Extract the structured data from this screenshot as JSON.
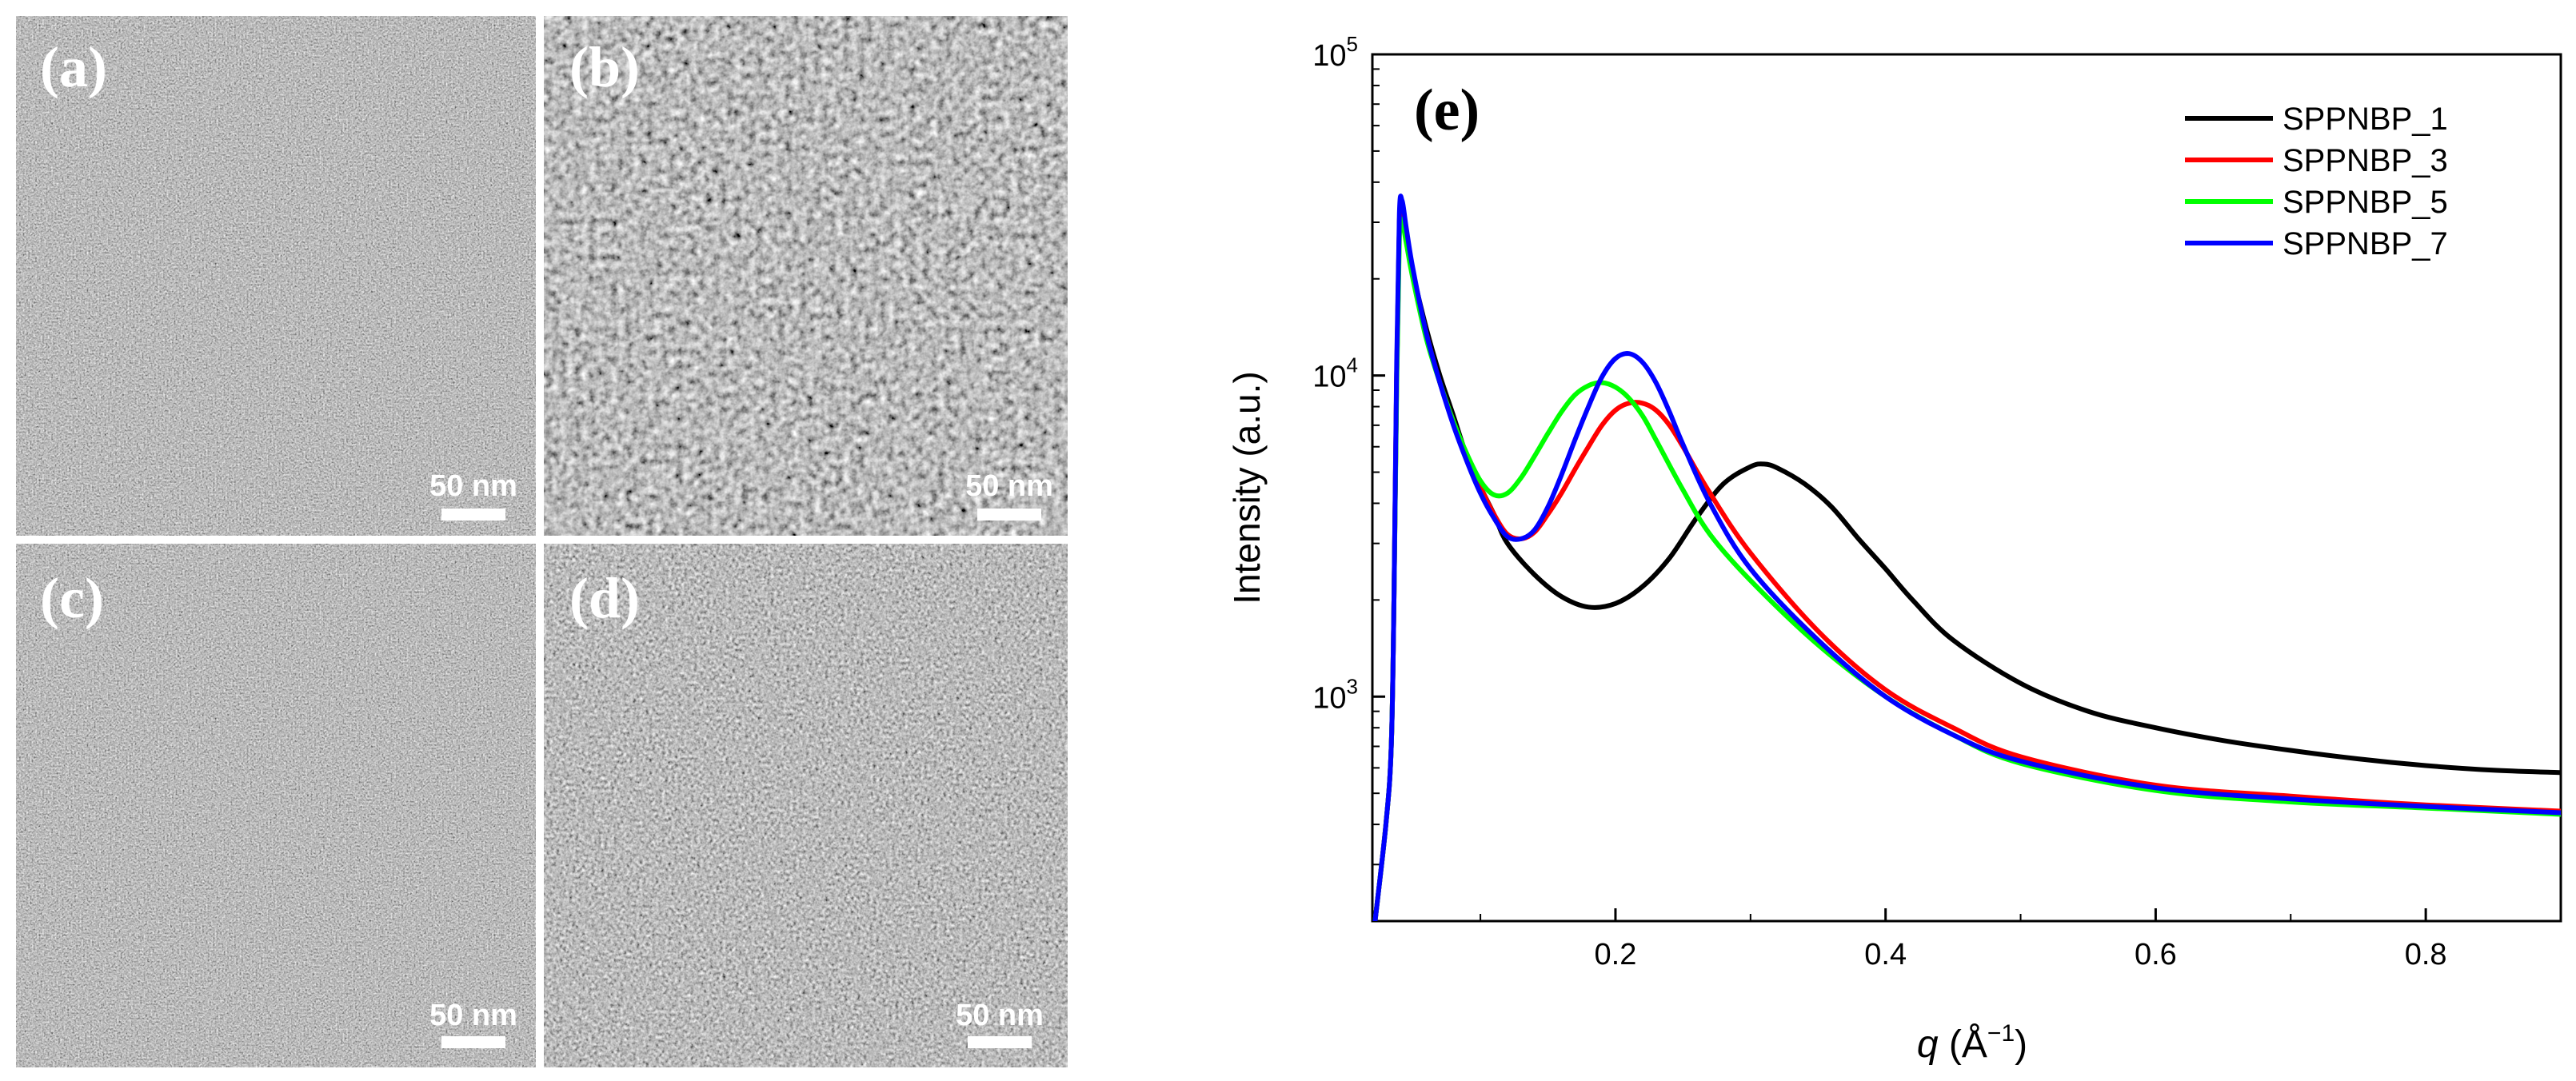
{
  "panels": [
    {
      "label": "(a)",
      "scale_bar_text": "50 nm",
      "noise_seed": 11,
      "texture": "fine"
    },
    {
      "label": "(b)",
      "scale_bar_text": "50 nm",
      "noise_seed": 29,
      "texture": "blobby"
    },
    {
      "label": "(c)",
      "scale_bar_text": "50 nm",
      "noise_seed": 47,
      "texture": "fine"
    },
    {
      "label": "(d)",
      "scale_bar_text": "50 nm",
      "noise_seed": 83,
      "texture": "medium"
    }
  ],
  "chart_data": {
    "type": "line",
    "panel_label": "(e)",
    "xlabel_var": "q",
    "xlabel_unit": "(Å",
    "xlabel_exp": "−1",
    "xlabel_close": ")",
    "ylabel": "Intensity (a.u.)",
    "xscale": "linear",
    "yscale": "log",
    "xlim": [
      0.02,
      0.9
    ],
    "ylim": [
      200,
      100000
    ],
    "xticks": [
      0.2,
      0.4,
      0.6,
      0.8
    ],
    "xtick_labels": [
      "0.2",
      "0.4",
      "0.6",
      "0.8"
    ],
    "yticks": [
      {
        "value": 1000,
        "base": "10",
        "exp": "3"
      },
      {
        "value": 10000,
        "base": "10",
        "exp": "4"
      },
      {
        "value": 100000,
        "base": "10",
        "exp": "5"
      }
    ],
    "legend_position": "top-right",
    "series": [
      {
        "name": "SPPNBP_1",
        "color": "#000000",
        "x": [
          0.022,
          0.03,
          0.034,
          0.036,
          0.038,
          0.04,
          0.042,
          0.045,
          0.05,
          0.06,
          0.07,
          0.08,
          0.09,
          0.1,
          0.11,
          0.12,
          0.14,
          0.16,
          0.18,
          0.2,
          0.22,
          0.24,
          0.26,
          0.28,
          0.3,
          0.31,
          0.32,
          0.34,
          0.36,
          0.38,
          0.4,
          0.42,
          0.45,
          0.5,
          0.55,
          0.6,
          0.65,
          0.7,
          0.75,
          0.8,
          0.85,
          0.9
        ],
        "y": [
          200,
          400,
          700,
          2000,
          10000,
          30000,
          32000,
          28000,
          21000,
          14000,
          10000,
          7500,
          5600,
          4500,
          3700,
          3000,
          2400,
          2050,
          1900,
          1950,
          2200,
          2700,
          3600,
          4600,
          5200,
          5300,
          5150,
          4600,
          3900,
          3100,
          2500,
          2000,
          1500,
          1100,
          900,
          800,
          730,
          680,
          640,
          610,
          590,
          580
        ]
      },
      {
        "name": "SPPNBP_3",
        "color": "#ff0000",
        "x": [
          0.022,
          0.03,
          0.034,
          0.036,
          0.038,
          0.04,
          0.042,
          0.045,
          0.05,
          0.06,
          0.07,
          0.08,
          0.09,
          0.1,
          0.11,
          0.12,
          0.13,
          0.14,
          0.15,
          0.16,
          0.17,
          0.18,
          0.19,
          0.2,
          0.21,
          0.22,
          0.23,
          0.24,
          0.25,
          0.27,
          0.3,
          0.35,
          0.4,
          0.45,
          0.5,
          0.6,
          0.7,
          0.8,
          0.9
        ],
        "y": [
          200,
          400,
          700,
          2000,
          10000,
          30000,
          33000,
          28000,
          21000,
          13500,
          9500,
          7200,
          5600,
          4500,
          3700,
          3200,
          3100,
          3250,
          3700,
          4300,
          5100,
          6000,
          7000,
          7800,
          8200,
          8200,
          7800,
          7000,
          6000,
          4300,
          2800,
          1600,
          1050,
          800,
          650,
          530,
          490,
          460,
          440
        ]
      },
      {
        "name": "SPPNBP_5",
        "color": "#00ff00",
        "x": [
          0.022,
          0.03,
          0.034,
          0.036,
          0.038,
          0.04,
          0.042,
          0.045,
          0.05,
          0.06,
          0.07,
          0.08,
          0.09,
          0.1,
          0.11,
          0.12,
          0.13,
          0.14,
          0.15,
          0.16,
          0.17,
          0.18,
          0.19,
          0.2,
          0.21,
          0.22,
          0.23,
          0.25,
          0.27,
          0.3,
          0.35,
          0.4,
          0.45,
          0.5,
          0.6,
          0.7,
          0.8,
          0.9
        ],
        "y": [
          200,
          400,
          700,
          2000,
          9000,
          27000,
          30000,
          26000,
          20000,
          13000,
          9500,
          7200,
          5700,
          4700,
          4250,
          4300,
          4800,
          5600,
          6600,
          7700,
          8700,
          9300,
          9500,
          9200,
          8500,
          7500,
          6300,
          4400,
          3200,
          2300,
          1450,
          1000,
          760,
          620,
          510,
          470,
          450,
          430
        ]
      },
      {
        "name": "SPPNBP_7",
        "color": "#0000ff",
        "x": [
          0.022,
          0.03,
          0.034,
          0.036,
          0.038,
          0.04,
          0.042,
          0.045,
          0.05,
          0.06,
          0.07,
          0.08,
          0.09,
          0.1,
          0.11,
          0.12,
          0.13,
          0.14,
          0.15,
          0.16,
          0.17,
          0.18,
          0.19,
          0.2,
          0.21,
          0.22,
          0.23,
          0.24,
          0.25,
          0.27,
          0.3,
          0.35,
          0.4,
          0.45,
          0.5,
          0.6,
          0.7,
          0.8,
          0.9
        ],
        "y": [
          200,
          400,
          700,
          2000,
          11000,
          32000,
          35000,
          29000,
          21500,
          13500,
          9500,
          7000,
          5400,
          4300,
          3600,
          3150,
          3100,
          3300,
          3900,
          4900,
          6300,
          8000,
          9900,
          11300,
          11700,
          11000,
          9500,
          7700,
          6100,
          4000,
          2500,
          1500,
          1000,
          760,
          630,
          520,
          480,
          455,
          435
        ]
      }
    ]
  }
}
